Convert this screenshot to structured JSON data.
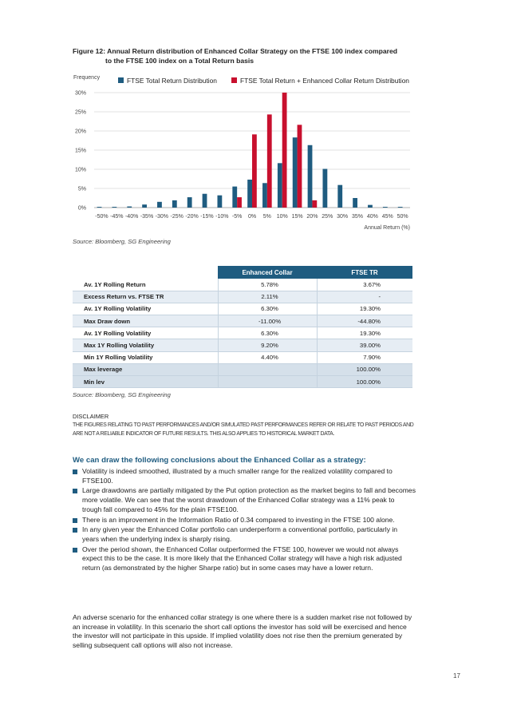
{
  "figure": {
    "title_line1": "Figure 12: Annual Return distribution of Enhanced Collar Strategy on the FTSE 100 index compared",
    "title_line2": "to the FTSE 100 index on a Total Return basis",
    "source": "Source: Bloomberg, SG Engineering"
  },
  "chart_data": {
    "type": "bar",
    "ylabel": "Frequency",
    "xlabel": "Annual Return (%)",
    "ylim": [
      0,
      30
    ],
    "yticks": [
      "0%",
      "5%",
      "10%",
      "15%",
      "20%",
      "25%",
      "30%"
    ],
    "grid": true,
    "legend_position": "top",
    "categories": [
      "-50%",
      "-45%",
      "-40%",
      "-35%",
      "-30%",
      "-25%",
      "-20%",
      "-15%",
      "-10%",
      "-5%",
      "0%",
      "5%",
      "10%",
      "15%",
      "20%",
      "25%",
      "30%",
      "35%",
      "40%",
      "45%",
      "50%"
    ],
    "series": [
      {
        "name": "FTSE Total Return Distribution",
        "color": "#1f5c80",
        "values": [
          0.2,
          0.2,
          0.3,
          0.8,
          1.5,
          1.9,
          2.7,
          3.6,
          3.2,
          5.5,
          7.3,
          6.4,
          11.6,
          18.3,
          16.3,
          10.1,
          5.9,
          2.5,
          0.7,
          0.2,
          0.2
        ]
      },
      {
        "name": "FTSE Total Return + Enhanced Collar Return Distribution",
        "color": "#c8102e",
        "values": [
          0,
          0,
          0,
          0,
          0,
          0,
          0,
          0,
          0,
          2.7,
          19.1,
          24.3,
          30,
          21.6,
          1.9,
          0,
          0,
          0,
          0,
          0,
          0
        ]
      }
    ]
  },
  "table": {
    "headers": [
      "",
      "Enhanced Collar",
      "FTSE TR"
    ],
    "rows": [
      {
        "label": "Av. 1Y Rolling Return",
        "collar": "5.78%",
        "ftse": "3.67%"
      },
      {
        "label": "Excess Return vs. FTSE TR",
        "collar": "2.11%",
        "ftse": "-"
      },
      {
        "label": "Av. 1Y Rolling Volatility",
        "collar": "6.30%",
        "ftse": "19.30%"
      },
      {
        "label": "Max Draw down",
        "collar": "-11.00%",
        "ftse": "-44.80%"
      },
      {
        "label": "Av. 1Y Rolling Volatility",
        "collar": "6.30%",
        "ftse": "19.30%"
      },
      {
        "label": "Max 1Y Rolling Volatility",
        "collar": "9.20%",
        "ftse": "39.00%"
      },
      {
        "label": "Min 1Y Rolling Volatility",
        "collar": "4.40%",
        "ftse": "7.90%"
      },
      {
        "label": "Max leverage",
        "collar": "",
        "ftse": "100.00%"
      },
      {
        "label": "Min lev",
        "collar": "",
        "ftse": "100.00%"
      }
    ],
    "source": "Source: Bloomberg, SG Engineering"
  },
  "disclaimer": {
    "heading": "DISCLAIMER",
    "body": "THE FIGURES RELATING TO PAST PERFORMANCES AND/OR SIMULATED PAST PERFORMANCES REFER OR RELATE TO PAST PERIODS AND ARE NOT A RELIABLE INDICATOR OF FUTURE RESULTS. THIS ALSO APPLIES TO HISTORICAL MARKET DATA."
  },
  "conclusions": {
    "heading": "We can draw the following conclusions about the Enhanced Collar as a strategy:",
    "bullets": [
      "Volatility is indeed smoothed, illustrated by a much smaller range for the realized volatility compared to FTSE100.",
      "Large drawdowns are partially mitigated by the Put option protection as the market begins to fall and becomes more volatile. We can see that the worst drawdown of the Enhanced Collar strategy was a 11% peak to trough fall compared to 45% for the plain FTSE100.",
      "There is an improvement in the Information Ratio of 0.34 compared to investing in the FTSE 100 alone.",
      "In any given year the Enhanced Collar portfolio can underperform a conventional portfolio, particularly in years when the underlying index is sharply rising.",
      "Over the period shown, the Enhanced Collar outperformed the FTSE 100, however we would not always expect this to be the case. It is more likely that the Enhanced Collar strategy will have a high risk adjusted return (as demonstrated by the higher Sharpe ratio) but in some cases may have a lower return."
    ]
  },
  "final_paragraph": "An adverse scenario for the enhanced collar strategy is one where there is a sudden market rise not followed by an increase in volatility. In this scenario the short call options the investor has sold will be exercised and hence the investor will not participate in this upside. If implied volatility does not rise then the premium generated by selling subsequent call options will also not increase.",
  "page_number": "17"
}
